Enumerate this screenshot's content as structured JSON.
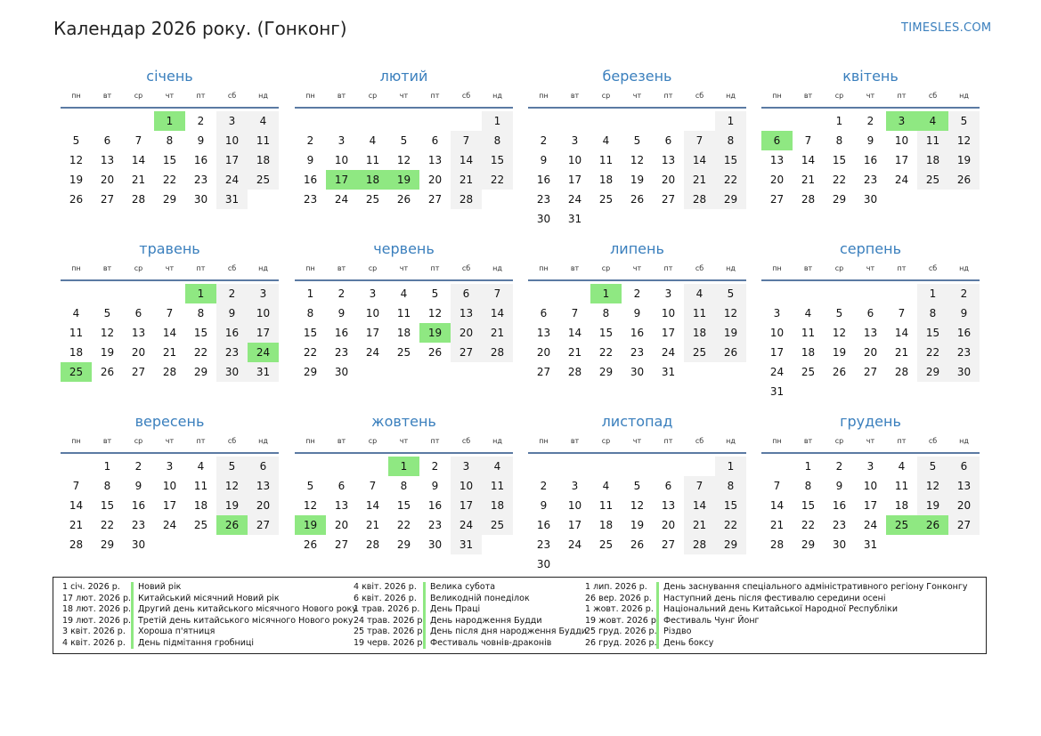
{
  "title": "Календар 2026 року. (Гонконг)",
  "brand": "TIMESLES.COM",
  "weekdays": [
    "пн",
    "вт",
    "ср",
    "чт",
    "пт",
    "сб",
    "нд"
  ],
  "colors": {
    "accent": "#3a7fbd",
    "holiday": "#8fe882",
    "weekend": "#f2f2f2",
    "rule": "#5b7aa3"
  },
  "months": [
    {
      "name": "січень",
      "offset": 3,
      "days": 31,
      "holidays": [
        1
      ]
    },
    {
      "name": "лютий",
      "offset": 6,
      "days": 28,
      "holidays": [
        17,
        18,
        19
      ]
    },
    {
      "name": "березень",
      "offset": 6,
      "days": 31,
      "holidays": []
    },
    {
      "name": "квітень",
      "offset": 2,
      "days": 30,
      "holidays": [
        3,
        4,
        6
      ]
    },
    {
      "name": "травень",
      "offset": 4,
      "days": 31,
      "holidays": [
        1,
        24,
        25
      ]
    },
    {
      "name": "червень",
      "offset": 0,
      "days": 30,
      "holidays": [
        19
      ]
    },
    {
      "name": "липень",
      "offset": 2,
      "days": 31,
      "holidays": [
        1
      ]
    },
    {
      "name": "серпень",
      "offset": 5,
      "days": 31,
      "holidays": []
    },
    {
      "name": "вересень",
      "offset": 1,
      "days": 30,
      "holidays": [
        26
      ]
    },
    {
      "name": "жовтень",
      "offset": 3,
      "days": 31,
      "holidays": [
        1,
        19
      ]
    },
    {
      "name": "листопад",
      "offset": 6,
      "days": 30,
      "holidays": []
    },
    {
      "name": "грудень",
      "offset": 1,
      "days": 31,
      "holidays": [
        25,
        26
      ]
    }
  ],
  "legend": [
    [
      {
        "date": "1 січ. 2026 р.",
        "name": "Новий рік"
      },
      {
        "date": "17 лют. 2026 р.",
        "name": "Китайський місячний Новий рік"
      },
      {
        "date": "18 лют. 2026 р.",
        "name": "Другий день китайського місячного Нового року"
      },
      {
        "date": "19 лют. 2026 р.",
        "name": "Третій день китайського місячного Нового року"
      },
      {
        "date": "3 квіт. 2026 р.",
        "name": "Хороша п'ятниця"
      },
      {
        "date": "4 квіт. 2026 р.",
        "name": "День підмітання гробниці"
      }
    ],
    [
      {
        "date": "4 квіт. 2026 р.",
        "name": "Велика субота"
      },
      {
        "date": "6 квіт. 2026 р.",
        "name": "Великодній понеділок"
      },
      {
        "date": "1 трав. 2026 р.",
        "name": "День Праці"
      },
      {
        "date": "24 трав. 2026 р.",
        "name": "День народження Будди"
      },
      {
        "date": "25 трав. 2026 р.",
        "name": "День після дня народження Будди"
      },
      {
        "date": "19 черв. 2026 р.",
        "name": "Фестиваль човнів-драконів"
      }
    ],
    [
      {
        "date": "1 лип. 2026 р.",
        "name": "День заснування спеціального адміністративного регіону Гонконгу"
      },
      {
        "date": "26 вер. 2026 р.",
        "name": "Наступний день після фестивалю середини осені"
      },
      {
        "date": "1 жовт. 2026 р.",
        "name": "Національний день Китайської Народної Республіки"
      },
      {
        "date": "19 жовт. 2026 р.",
        "name": "Фестиваль Чунг Йонг"
      },
      {
        "date": "25 груд. 2026 р.",
        "name": "Різдво"
      },
      {
        "date": "26 груд. 2026 р.",
        "name": "День боксу"
      }
    ]
  ]
}
